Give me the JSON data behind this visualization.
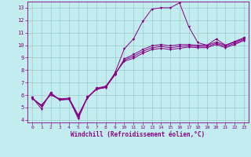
{
  "xlabel": "Windchill (Refroidissement éolien,°C)",
  "bg_color": "#c2ecee",
  "line_color": "#880088",
  "grid_color": "#99cccc",
  "x_values": [
    0,
    1,
    2,
    3,
    4,
    5,
    6,
    7,
    8,
    9,
    10,
    11,
    12,
    13,
    14,
    15,
    16,
    17,
    18,
    19,
    20,
    21,
    22,
    23
  ],
  "line1": [
    5.8,
    4.9,
    6.2,
    5.6,
    5.7,
    4.1,
    5.8,
    6.5,
    6.6,
    7.8,
    9.7,
    10.5,
    11.9,
    12.9,
    13.0,
    13.0,
    13.4,
    11.5,
    10.2,
    10.0,
    10.5,
    10.0,
    10.3,
    10.6
  ],
  "line2": [
    5.8,
    5.1,
    6.1,
    5.6,
    5.65,
    4.25,
    5.85,
    6.45,
    6.62,
    7.62,
    8.9,
    9.25,
    9.65,
    9.95,
    10.05,
    9.95,
    10.05,
    10.05,
    10.0,
    10.0,
    10.25,
    10.0,
    10.25,
    10.52
  ],
  "line3": [
    5.75,
    5.15,
    6.05,
    5.65,
    5.7,
    4.3,
    5.8,
    6.5,
    6.67,
    7.67,
    8.8,
    9.1,
    9.5,
    9.8,
    9.9,
    9.8,
    9.9,
    9.95,
    9.9,
    9.9,
    10.15,
    9.9,
    10.15,
    10.45
  ],
  "line4": [
    5.7,
    5.2,
    6.0,
    5.7,
    5.75,
    4.4,
    5.75,
    6.55,
    6.72,
    7.72,
    8.7,
    8.95,
    9.35,
    9.65,
    9.75,
    9.65,
    9.75,
    9.85,
    9.8,
    9.8,
    10.05,
    9.8,
    10.05,
    10.38
  ],
  "ylim": [
    3.8,
    13.5
  ],
  "xlim": [
    -0.5,
    23.5
  ],
  "yticks": [
    4,
    5,
    6,
    7,
    8,
    9,
    10,
    11,
    12,
    13
  ],
  "xticks": [
    0,
    1,
    2,
    3,
    4,
    5,
    6,
    7,
    8,
    9,
    10,
    11,
    12,
    13,
    14,
    15,
    16,
    17,
    18,
    19,
    20,
    21,
    22,
    23
  ],
  "markersize": 2.0,
  "linewidth": 0.7
}
